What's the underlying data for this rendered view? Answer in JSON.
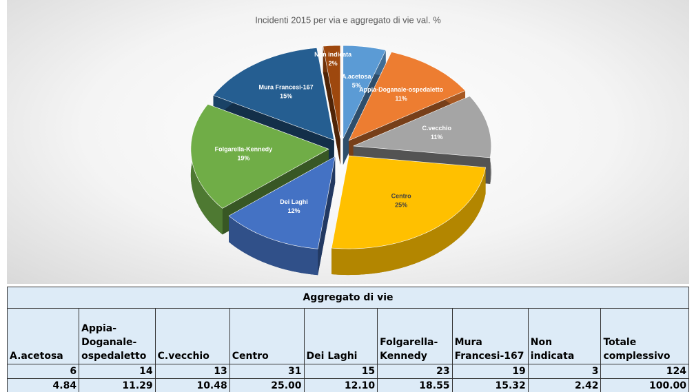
{
  "chart_data": {
    "type": "pie",
    "title": "Incidenti 2015 per via e aggregato di vie val. %",
    "categories": [
      "A.acetosa",
      "Appia-Doganale-ospedaletto",
      "C.vecchio",
      "Centro",
      "Dei Laghi",
      "Folgarella-Kennedy",
      "Mura Francesi-167",
      "Non indicata"
    ],
    "values": [
      5,
      11,
      11,
      25,
      12,
      19,
      15,
      2
    ],
    "value_labels": [
      "5%",
      "11%",
      "11%",
      "25%",
      "12%",
      "19%",
      "15%",
      "2%"
    ],
    "colors": [
      "#5b9bd5",
      "#ed7d31",
      "#a5a5a5",
      "#ffc000",
      "#4472c4",
      "#70ad47",
      "#255e91",
      "#9e480e"
    ]
  },
  "table": {
    "title": "Aggregato di vie",
    "columns": [
      "A.acetosa",
      "Appia-Doganale-ospedaletto",
      "C.vecchio",
      "Centro",
      "Dei Laghi",
      "Folgarella-Kennedy",
      "Mura Francesi-167",
      "Non indicata",
      "Totale complessivo"
    ],
    "rows": [
      [
        "6",
        "14",
        "13",
        "31",
        "15",
        "23",
        "19",
        "3",
        "124"
      ],
      [
        "4.84",
        "11.29",
        "10.48",
        "25.00",
        "12.10",
        "18.55",
        "15.32",
        "2.42",
        "100.00"
      ]
    ]
  }
}
